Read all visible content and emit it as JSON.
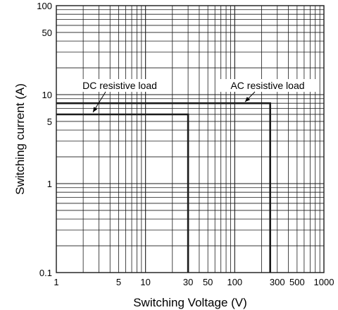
{
  "chart_data": {
    "type": "line",
    "title": "",
    "xlabel": "Switching Voltage (V)",
    "ylabel": "Switching current (A)",
    "x_scale": "log",
    "y_scale": "log",
    "xlim": [
      1,
      1000
    ],
    "ylim": [
      0.1,
      100
    ],
    "grid": true,
    "x_ticks": [
      {
        "value": 1,
        "label": "1"
      },
      {
        "value": 5,
        "label": "5"
      },
      {
        "value": 10,
        "label": "10"
      },
      {
        "value": 30,
        "label": "30"
      },
      {
        "value": 50,
        "label": "50"
      },
      {
        "value": 100,
        "label": "100"
      },
      {
        "value": 300,
        "label": "300"
      },
      {
        "value": 500,
        "label": "500"
      },
      {
        "value": 1000,
        "label": "1000"
      }
    ],
    "y_ticks": [
      {
        "value": 0.1,
        "label": "0.1"
      },
      {
        "value": 1,
        "label": "1"
      },
      {
        "value": 5,
        "label": "5"
      },
      {
        "value": 10,
        "label": "10"
      },
      {
        "value": 50,
        "label": "50"
      },
      {
        "value": 100,
        "label": "100"
      }
    ],
    "series": [
      {
        "name": "DC resistive load",
        "x": [
          1,
          30,
          30
        ],
        "y": [
          6,
          6,
          0.1
        ]
      },
      {
        "name": "AC resistive load",
        "x": [
          1,
          250,
          250
        ],
        "y": [
          8,
          8,
          0.1
        ]
      }
    ],
    "annotations": [
      {
        "text": "DC resistive load",
        "series": 0,
        "points_to": [
          2.5,
          6
        ]
      },
      {
        "text": "AC resistive load",
        "series": 1,
        "points_to": [
          120,
          8
        ]
      }
    ],
    "line_color": "#1a1a1a",
    "grid_color": "#1a1a1a"
  }
}
